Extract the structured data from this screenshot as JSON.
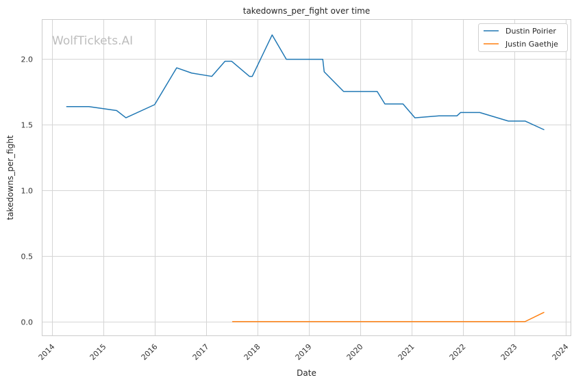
{
  "chart_data": {
    "type": "line",
    "title": "takedowns_per_fight over time",
    "xlabel": "Date",
    "ylabel": "takedowns_per_fight",
    "watermark": "WolfTickets.AI",
    "xlim": [
      "2013-10-20",
      "2024-02-10"
    ],
    "ylim": [
      -0.11,
      2.3
    ],
    "x_ticks": [
      "2014",
      "2015",
      "2016",
      "2017",
      "2018",
      "2019",
      "2020",
      "2021",
      "2022",
      "2023",
      "2024"
    ],
    "y_ticks": [
      "0.0",
      "0.5",
      "1.0",
      "1.5",
      "2.0"
    ],
    "y_tick_values": [
      0,
      0.5,
      1.0,
      1.5,
      2.0
    ],
    "grid": true,
    "legend_position": "top-right",
    "series": [
      {
        "name": "Dustin Poirier",
        "color": "#1f77b4",
        "points": [
          [
            "2014-04-15",
            1.635
          ],
          [
            "2014-09-20",
            1.635
          ],
          [
            "2015-04-05",
            1.605
          ],
          [
            "2015-06-10",
            1.55
          ],
          [
            "2015-12-31",
            1.65
          ],
          [
            "2016-06-05",
            1.93
          ],
          [
            "2016-09-20",
            1.89
          ],
          [
            "2017-02-10",
            1.865
          ],
          [
            "2017-05-15",
            1.98
          ],
          [
            "2017-07-01",
            1.98
          ],
          [
            "2017-11-05",
            1.865
          ],
          [
            "2017-11-25",
            1.865
          ],
          [
            "2018-04-15",
            2.18
          ],
          [
            "2018-07-25",
            1.995
          ],
          [
            "2019-04-10",
            1.995
          ],
          [
            "2019-04-20",
            1.9
          ],
          [
            "2019-09-05",
            1.75
          ],
          [
            "2020-05-01",
            1.75
          ],
          [
            "2020-06-25",
            1.655
          ],
          [
            "2020-11-01",
            1.655
          ],
          [
            "2021-01-25",
            1.55
          ],
          [
            "2021-07-15",
            1.565
          ],
          [
            "2021-11-20",
            1.565
          ],
          [
            "2021-12-15",
            1.59
          ],
          [
            "2022-05-01",
            1.59
          ],
          [
            "2022-11-20",
            1.525
          ],
          [
            "2023-03-20",
            1.525
          ],
          [
            "2023-07-30",
            1.46
          ]
        ]
      },
      {
        "name": "Justin Gaethje",
        "color": "#ff7f0e",
        "points": [
          [
            "2017-07-08",
            0.0
          ],
          [
            "2023-03-18",
            0.0
          ],
          [
            "2023-07-30",
            0.07
          ]
        ]
      }
    ]
  }
}
